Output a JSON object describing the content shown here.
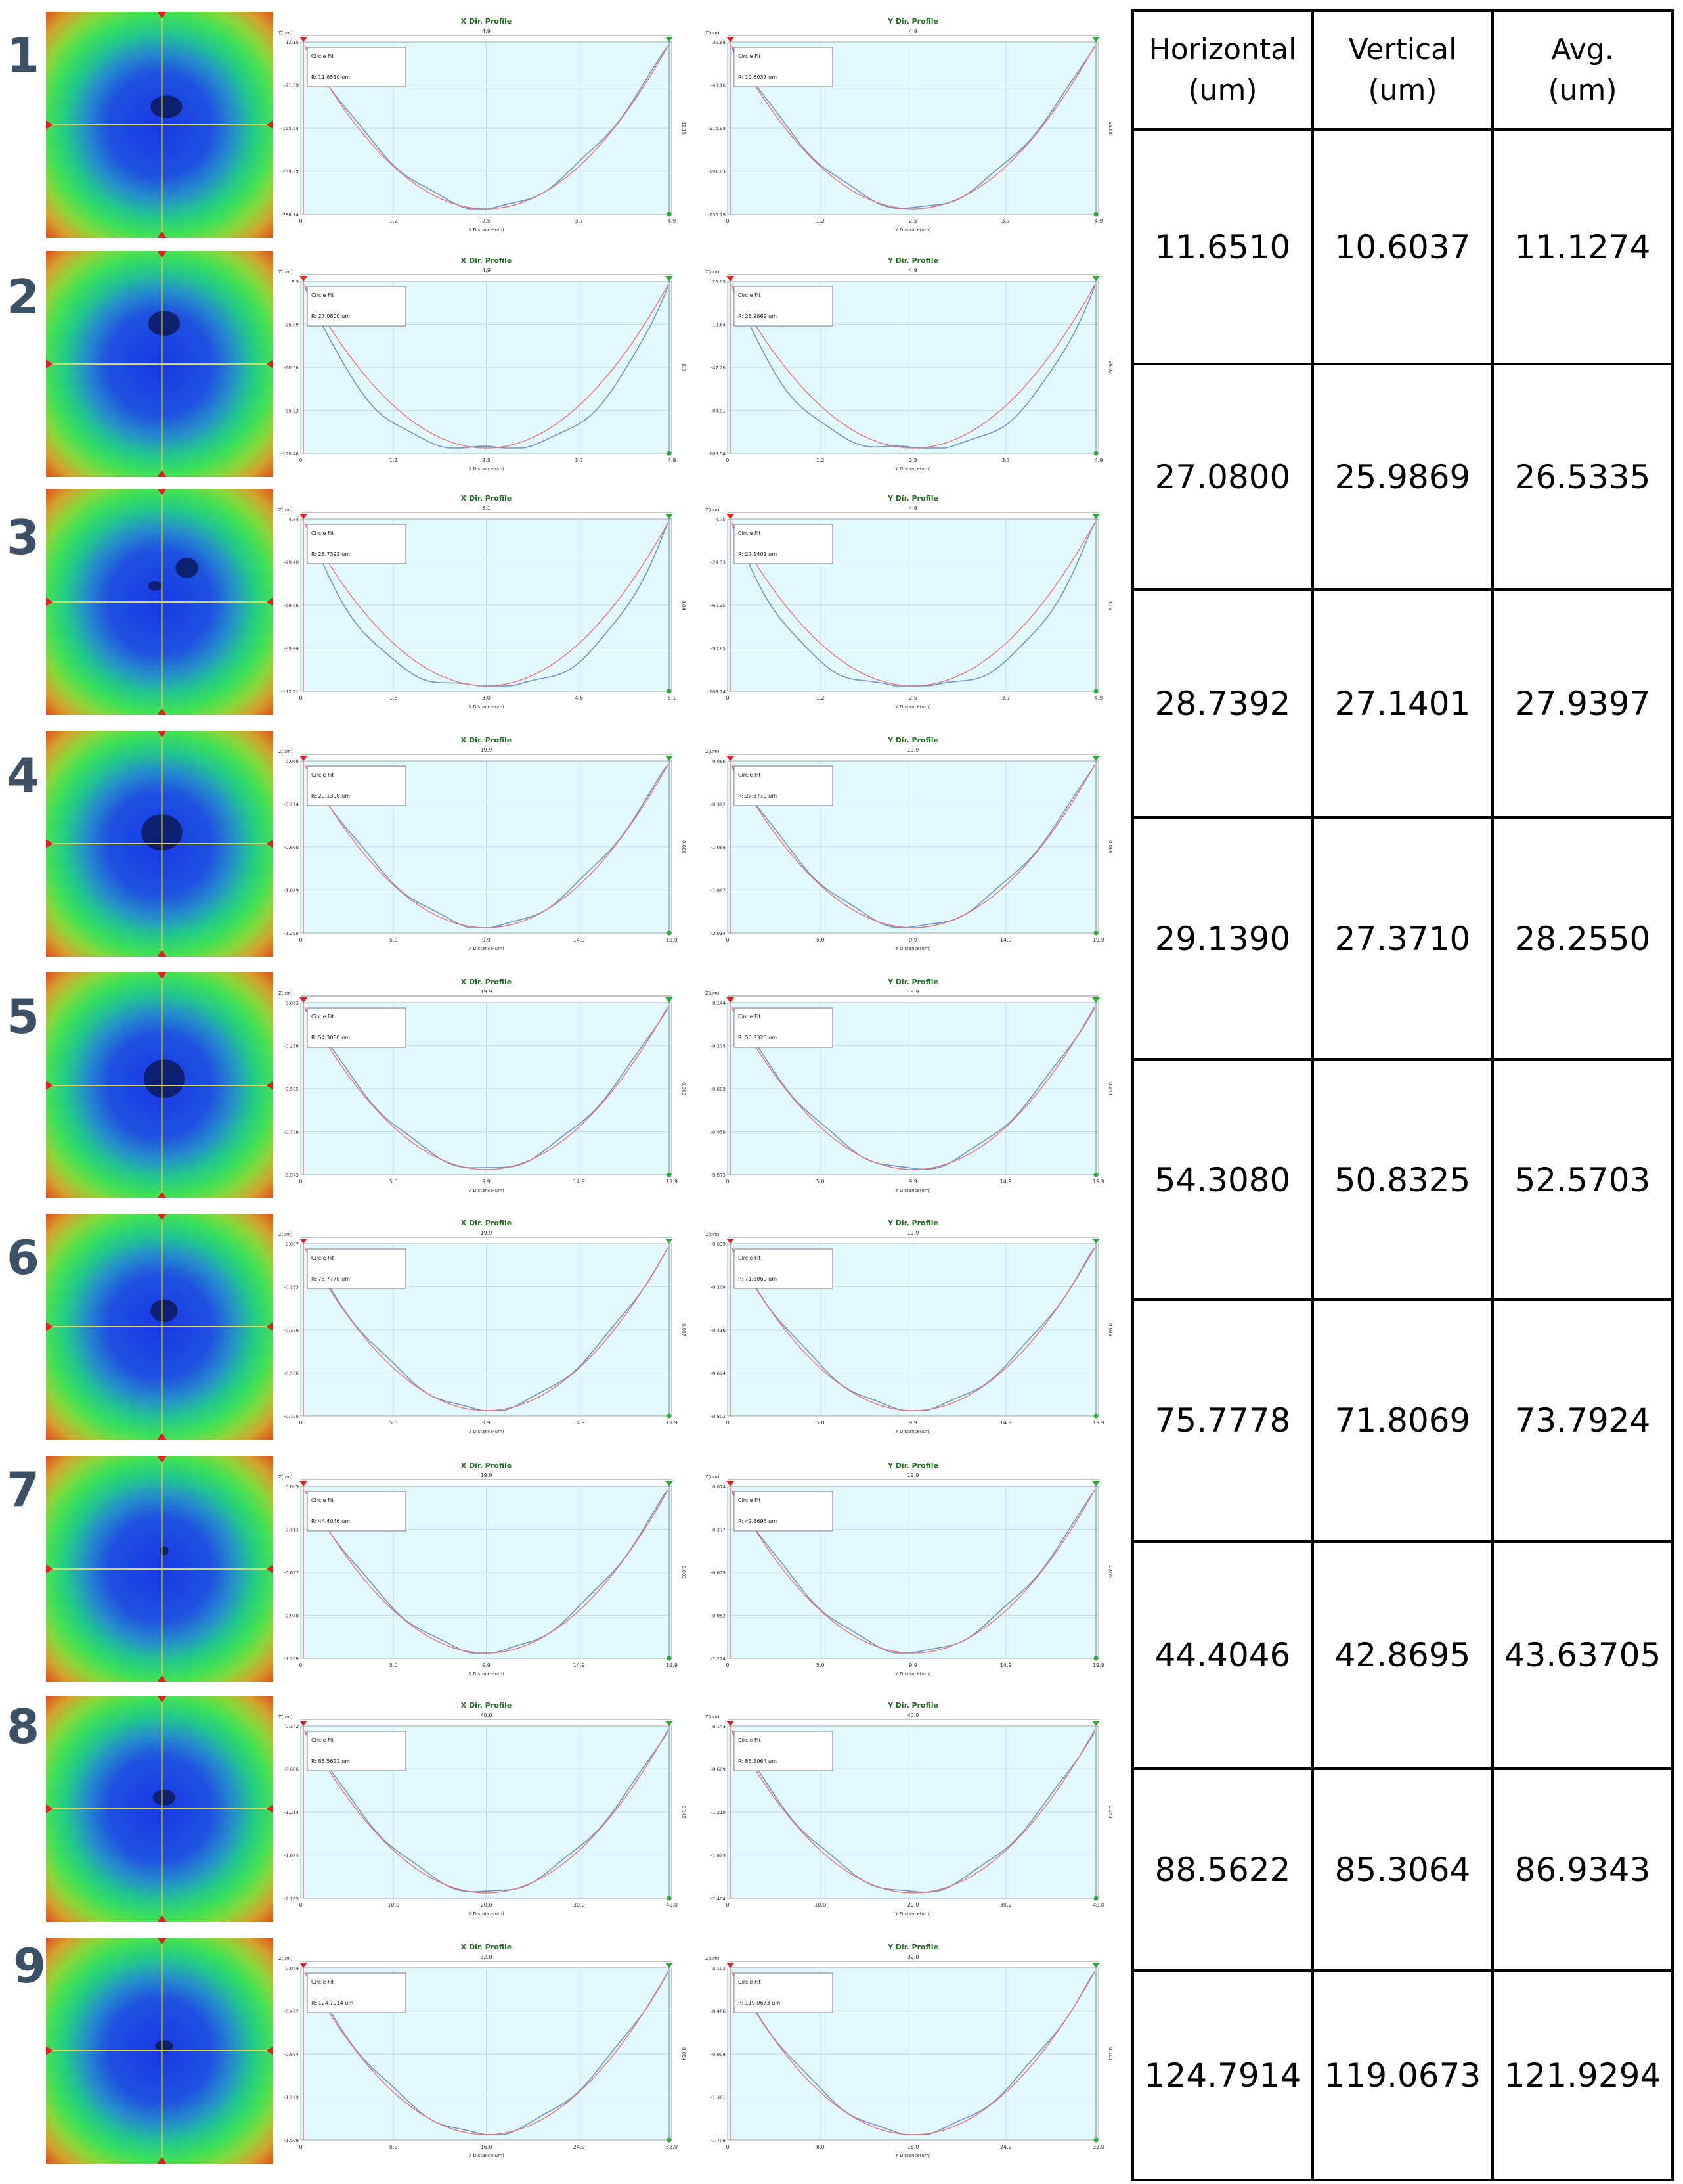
{
  "panel_labels": {
    "x_title": "X Dir. Profile",
    "y_title": "Y Dir. Profile",
    "fit_label": "Circle Fit",
    "x_axis_label": "X Distance(um)",
    "y_axis_label": "Y Distance(um)",
    "z_axis_label": "Z(um)"
  },
  "colors": {
    "row_number": "#3d5166",
    "plot_bg": "#e1f8fc",
    "measured_line": "#6f91c9",
    "fit_line": "#e5747a",
    "title": "#1f6e1f",
    "heatmap_center": "#1a3fe0",
    "heatmap_mid": "#27c7b0",
    "heatmap_edge": "#e0521a"
  },
  "table": {
    "headers": [
      [
        "Horizontal",
        "(um)"
      ],
      [
        "Vertical",
        "(um)"
      ],
      [
        "Avg.",
        "(um)"
      ]
    ],
    "rows": [
      [
        "11.6510",
        "10.6037",
        "11.1274"
      ],
      [
        "27.0800",
        "25.9869",
        "26.5335"
      ],
      [
        "28.7392",
        "27.1401",
        "27.9397"
      ],
      [
        "29.1390",
        "27.3710",
        "28.2550"
      ],
      [
        "54.3080",
        "50.8325",
        "52.5703"
      ],
      [
        "75.7778",
        "71.8069",
        "73.7924"
      ],
      [
        "44.4046",
        "42.8695",
        "43.63705"
      ],
      [
        "88.5622",
        "85.3064",
        "86.9343"
      ],
      [
        "124.7914",
        "119.0673",
        "121.9294"
      ]
    ]
  },
  "chart_data": [
    {
      "type": "line",
      "row": 1,
      "direction": "x",
      "title": "X Dir. Profile",
      "fit_radius": "R: 11.6510 um",
      "x_ticks": [
        "0",
        "1.2",
        "2.5",
        "3.7",
        "4.9"
      ],
      "y_ticks": [
        "12.15",
        "-71.69",
        "-155.54",
        "-239.39",
        "-288.14"
      ],
      "xlim": [
        0,
        4.9
      ],
      "ylim": [
        -288.14,
        12.15
      ],
      "shape": "round"
    },
    {
      "type": "line",
      "row": 1,
      "direction": "y",
      "title": "Y Dir. Profile",
      "fit_radius": "R: 10.6037 um",
      "x_ticks": [
        "0",
        "1.2",
        "2.5",
        "3.7",
        "4.9"
      ],
      "y_ticks": [
        "35.68",
        "-40.16",
        "-115.99",
        "-191.83",
        "-256.29"
      ],
      "xlim": [
        0,
        4.9
      ],
      "ylim": [
        -256.29,
        35.68
      ],
      "shape": "round"
    },
    {
      "type": "line",
      "row": 2,
      "direction": "x",
      "title": "X Dir. Profile",
      "fit_radius": "R: 27.0800 um",
      "x_ticks": [
        "0",
        "1.2",
        "2.5",
        "3.7",
        "4.9"
      ],
      "y_ticks": [
        "8.9",
        "-25.89",
        "-60.56",
        "-95.23",
        "-120.48"
      ],
      "xlim": [
        0,
        4.9
      ],
      "ylim": [
        -120.48,
        8.9
      ],
      "shape": "flat"
    },
    {
      "type": "line",
      "row": 2,
      "direction": "y",
      "title": "Y Dir. Profile",
      "fit_radius": "R: 25.9869 um",
      "x_ticks": [
        "0",
        "1.2",
        "2.5",
        "3.7",
        "4.9"
      ],
      "y_ticks": [
        "26.03",
        "-10.64",
        "-47.26",
        "-83.91",
        "-108.54"
      ],
      "xlim": [
        0,
        4.9
      ],
      "ylim": [
        -108.54,
        26.03
      ],
      "shape": "flat"
    },
    {
      "type": "line",
      "row": 3,
      "direction": "x",
      "title": "X Dir. Profile",
      "fit_radius": "R: 28.7392 um",
      "x_ticks": [
        "0",
        "1.5",
        "3.0",
        "4.6",
        "6.1"
      ],
      "y_ticks": [
        "4.84",
        "-29.40",
        "-59.66",
        "-89.44",
        "-112.21"
      ],
      "xlim": [
        0,
        6.1
      ],
      "ylim": [
        -112.21,
        4.84
      ],
      "shape": "flat"
    },
    {
      "type": "line",
      "row": 3,
      "direction": "y",
      "title": "Y Dir. Profile",
      "fit_radius": "R: 27.1401 um",
      "x_ticks": [
        "0",
        "1.2",
        "2.5",
        "3.7",
        "4.9"
      ],
      "y_ticks": [
        "4.75",
        "-29.53",
        "-60.35",
        "-90.85",
        "-108.24"
      ],
      "xlim": [
        0,
        4.9
      ],
      "ylim": [
        -108.24,
        4.75
      ],
      "shape": "flat"
    },
    {
      "type": "line",
      "row": 4,
      "direction": "x",
      "title": "X Dir. Profile",
      "fit_radius": "R: 29.1390 um",
      "x_ticks": [
        "0",
        "5.0",
        "9.9",
        "14.9",
        "19.9"
      ],
      "y_ticks": [
        "0.068",
        "-0.274",
        "-0.660",
        "-1.029",
        "-1.298"
      ],
      "xlim": [
        0,
        19.9
      ],
      "ylim": [
        -1.298,
        0.068
      ],
      "shape": "round"
    },
    {
      "type": "line",
      "row": 4,
      "direction": "y",
      "title": "Y Dir. Profile",
      "fit_radius": "R: 27.3710 um",
      "x_ticks": [
        "0",
        "5.0",
        "9.9",
        "14.9",
        "19.9"
      ],
      "y_ticks": [
        "0.066",
        "-0.322",
        "-1.068",
        "-1.887",
        "-2.014"
      ],
      "xlim": [
        0,
        19.9
      ],
      "ylim": [
        -2.014,
        0.066
      ],
      "shape": "round"
    },
    {
      "type": "line",
      "row": 5,
      "direction": "x",
      "title": "X Dir. Profile",
      "fit_radius": "R: 54.3080 um",
      "x_ticks": [
        "0",
        "5.0",
        "9.9",
        "14.9",
        "19.9"
      ],
      "y_ticks": [
        "0.063",
        "-0.256",
        "-0.505",
        "-0.796",
        "-0.973"
      ],
      "xlim": [
        0,
        19.9
      ],
      "ylim": [
        -0.973,
        0.063
      ],
      "shape": "round"
    },
    {
      "type": "line",
      "row": 5,
      "direction": "y",
      "title": "Y Dir. Profile",
      "fit_radius": "R: 50.8325 um",
      "x_ticks": [
        "0",
        "5.0",
        "9.9",
        "14.9",
        "19.9"
      ],
      "y_ticks": [
        "0.144",
        "-0.275",
        "-0.609",
        "-0.958",
        "-0.973"
      ],
      "xlim": [
        0,
        19.9
      ],
      "ylim": [
        -0.973,
        0.144
      ],
      "shape": "round"
    },
    {
      "type": "line",
      "row": 6,
      "direction": "x",
      "title": "X Dir. Profile",
      "fit_radius": "R: 75.7778 um",
      "x_ticks": [
        "0",
        "5.0",
        "9.9",
        "14.9",
        "19.9"
      ],
      "y_ticks": [
        "0.007",
        "-0.163",
        "-0.386",
        "-0.566",
        "-0.700"
      ],
      "xlim": [
        0,
        19.9
      ],
      "ylim": [
        -0.7,
        0.007
      ],
      "shape": "round"
    },
    {
      "type": "line",
      "row": 6,
      "direction": "y",
      "title": "Y Dir. Profile",
      "fit_radius": "R: 71.8069 um",
      "x_ticks": [
        "0",
        "5.0",
        "9.9",
        "14.9",
        "19.9"
      ],
      "y_ticks": [
        "0.039",
        "-0.208",
        "-0.416",
        "-0.624",
        "-0.802"
      ],
      "xlim": [
        0,
        19.9
      ],
      "ylim": [
        -0.802,
        0.039
      ],
      "shape": "round"
    },
    {
      "type": "line",
      "row": 7,
      "direction": "x",
      "title": "X Dir. Profile",
      "fit_radius": "R: 44.4046 um",
      "x_ticks": [
        "0",
        "5.0",
        "9.9",
        "14.9",
        "19.9"
      ],
      "y_ticks": [
        "0.003",
        "-0.313",
        "-0.627",
        "-0.940",
        "-1.209"
      ],
      "xlim": [
        0,
        19.9
      ],
      "ylim": [
        -1.209,
        0.003
      ],
      "shape": "round"
    },
    {
      "type": "line",
      "row": 7,
      "direction": "y",
      "title": "Y Dir. Profile",
      "fit_radius": "R: 42.8695 um",
      "x_ticks": [
        "0",
        "5.0",
        "9.9",
        "14.9",
        "19.9"
      ],
      "y_ticks": [
        "0.074",
        "-0.277",
        "-0.629",
        "-0.952",
        "-1.224"
      ],
      "xlim": [
        0,
        19.9
      ],
      "ylim": [
        -1.224,
        0.074
      ],
      "shape": "round"
    },
    {
      "type": "line",
      "row": 8,
      "direction": "x",
      "title": "X Dir. Profile",
      "fit_radius": "R: 88.5622 um",
      "x_ticks": [
        "0",
        "10.0",
        "20.0",
        "30.0",
        "40.0"
      ],
      "y_ticks": [
        "0.142",
        "-0.606",
        "-1.214",
        "-1.823",
        "-2.285"
      ],
      "xlim": [
        0,
        40.0
      ],
      "ylim": [
        -2.285,
        0.142
      ],
      "shape": "round"
    },
    {
      "type": "line",
      "row": 8,
      "direction": "y",
      "title": "Y Dir. Profile",
      "fit_radius": "R: 85.3064 um",
      "x_ticks": [
        "0",
        "10.0",
        "20.0",
        "30.0",
        "40.0"
      ],
      "y_ticks": [
        "0.143",
        "-0.609",
        "-1.219",
        "-1.829",
        "-2.404"
      ],
      "xlim": [
        0,
        40.0
      ],
      "ylim": [
        -2.404,
        0.143
      ],
      "shape": "round"
    },
    {
      "type": "line",
      "row": 9,
      "direction": "x",
      "title": "X Dir. Profile",
      "fit_radius": "R: 124.7914 um",
      "x_ticks": [
        "0",
        "8.0",
        "16.0",
        "24.0",
        "32.0"
      ],
      "y_ticks": [
        "0.064",
        "-0.422",
        "-0.894",
        "-1.299",
        "-1.508"
      ],
      "xlim": [
        0,
        32.0
      ],
      "ylim": [
        -1.508,
        0.064
      ],
      "shape": "round"
    },
    {
      "type": "line",
      "row": 9,
      "direction": "y",
      "title": "Y Dir. Profile",
      "fit_radius": "R: 119.0673 um",
      "x_ticks": [
        "0",
        "8.0",
        "16.0",
        "24.0",
        "32.0"
      ],
      "y_ticks": [
        "0.103",
        "-0.466",
        "-0.908",
        "-1.361",
        "-1.708"
      ],
      "xlim": [
        0,
        32.0
      ],
      "ylim": [
        -1.708,
        0.103
      ],
      "shape": "round"
    }
  ]
}
